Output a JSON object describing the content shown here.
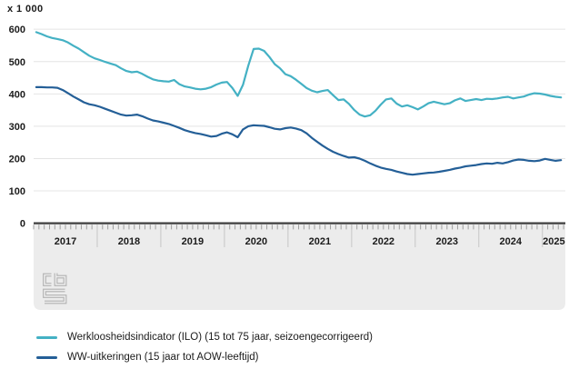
{
  "chart_data": {
    "type": "line",
    "title": "",
    "ylabel": "x 1 000",
    "ylim": [
      0,
      620
    ],
    "grid": true,
    "legend_position": "bottom",
    "x_unit": "month",
    "x_range": [
      "2017-01",
      "2025-04"
    ],
    "x_tick_labels": [
      "2017",
      "2018",
      "2019",
      "2020",
      "2021",
      "2022",
      "2023",
      "2024",
      "2025"
    ],
    "y_ticks": [
      0,
      100,
      200,
      300,
      400,
      500,
      600
    ],
    "series": [
      {
        "id": "ilo",
        "name": "Werkloosheidsindicator (ILO) (15 tot 75 jaar, seizoengecorrigeerd)",
        "color": "#44b1c4",
        "values": [
          591,
          585,
          578,
          573,
          570,
          566,
          559,
          549,
          540,
          529,
          518,
          510,
          505,
          499,
          494,
          489,
          479,
          471,
          467,
          469,
          462,
          453,
          445,
          441,
          439,
          438,
          443,
          430,
          423,
          420,
          416,
          414,
          416,
          421,
          429,
          435,
          437,
          418,
          394,
          428,
          487,
          539,
          540,
          533,
          514,
          492,
          479,
          461,
          455,
          444,
          431,
          418,
          410,
          405,
          409,
          412,
          396,
          381,
          383,
          369,
          350,
          336,
          330,
          334,
          348,
          367,
          383,
          386,
          370,
          361,
          365,
          359,
          352,
          361,
          371,
          376,
          372,
          368,
          371,
          380,
          386,
          378,
          381,
          384,
          381,
          385,
          384,
          386,
          389,
          391,
          386,
          389,
          392,
          398,
          402,
          401,
          398,
          394,
          391,
          389
        ]
      },
      {
        "id": "ww",
        "name": "WW-uitkeringen (15 jaar tot AOW-leeftijd)",
        "color": "#245f97",
        "values": [
          421,
          421,
          420,
          420,
          419,
          412,
          402,
          392,
          383,
          374,
          368,
          365,
          360,
          354,
          348,
          342,
          336,
          333,
          334,
          336,
          331,
          324,
          318,
          315,
          311,
          307,
          301,
          295,
          288,
          283,
          279,
          276,
          272,
          268,
          270,
          277,
          281,
          275,
          266,
          290,
          300,
          303,
          302,
          301,
          297,
          292,
          290,
          294,
          296,
          293,
          288,
          278,
          264,
          252,
          240,
          230,
          221,
          214,
          208,
          203,
          204,
          200,
          193,
          185,
          178,
          172,
          168,
          165,
          160,
          156,
          152,
          150,
          152,
          154,
          156,
          157,
          159,
          162,
          165,
          169,
          172,
          176,
          178,
          180,
          183,
          185,
          184,
          187,
          185,
          189,
          194,
          197,
          196,
          193,
          192,
          194,
          199,
          196,
          193,
          195
        ]
      }
    ],
    "colors": {
      "grid": "#e4e4e4",
      "axis": "#3d3d3d",
      "band": "#ececec",
      "month_tick": "#9e9e9e",
      "year_separator": "#c6c6c6",
      "label_text": "#1b1b1b"
    }
  },
  "logo": {
    "name": "cbs-logo"
  }
}
